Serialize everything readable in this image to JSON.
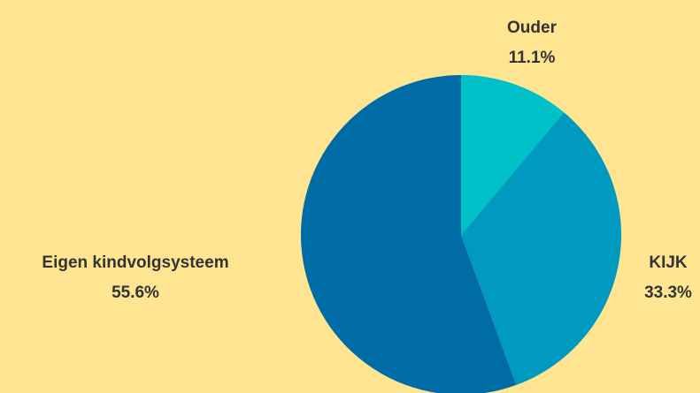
{
  "chart_data": {
    "type": "pie",
    "start_angle_deg": 0,
    "direction": "clockwise",
    "slices": [
      {
        "label": "Ouder",
        "value": 11.1,
        "value_label": "11.1%",
        "color": "#00c0c8"
      },
      {
        "label": "KIJK",
        "value": 33.3,
        "value_label": "33.3%",
        "color": "#0099c0"
      },
      {
        "label": "Eigen kindvolgsysteem",
        "value": 55.6,
        "value_label": "55.6%",
        "color": "#006ca6"
      }
    ]
  },
  "colors": {
    "background": "#ffe591",
    "label_text": "#333333"
  }
}
